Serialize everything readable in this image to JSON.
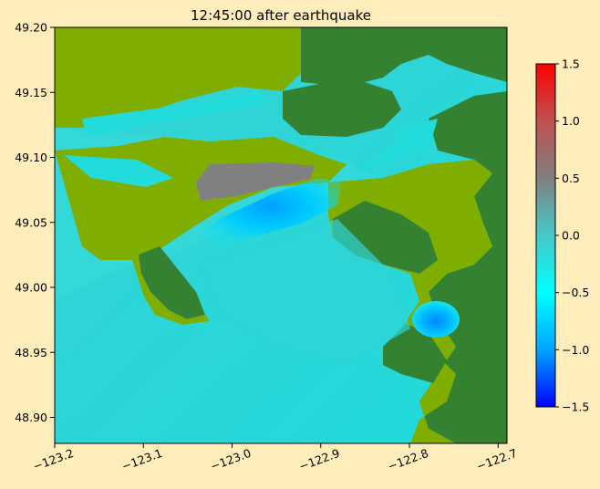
{
  "figure": {
    "background": "#FFEEBB"
  },
  "chart_data": {
    "type": "heatmap",
    "title": "12:45:00 after earthquake",
    "xlabel": "",
    "ylabel": "",
    "xlim": [
      -123.2,
      -122.69
    ],
    "ylim": [
      48.88,
      49.2
    ],
    "xticks": [
      {
        "value": -123.2,
        "label": "−123.2"
      },
      {
        "value": -123.1,
        "label": "−123.1"
      },
      {
        "value": -123.0,
        "label": "−123.0"
      },
      {
        "value": -122.9,
        "label": "−122.9"
      },
      {
        "value": -122.8,
        "label": "−122.8"
      },
      {
        "value": -122.7,
        "label": "−122.7"
      }
    ],
    "yticks": [
      {
        "value": 49.2,
        "label": "49.20"
      },
      {
        "value": 49.15,
        "label": "49.15"
      },
      {
        "value": 49.1,
        "label": "49.10"
      },
      {
        "value": 49.05,
        "label": "49.05"
      },
      {
        "value": 49.0,
        "label": "49.00"
      },
      {
        "value": 48.95,
        "label": "48.95"
      },
      {
        "value": 48.9,
        "label": "48.90"
      }
    ],
    "colorbar": {
      "range": [
        -1.5,
        1.5
      ],
      "ticks": [
        {
          "value": 1.5,
          "label": "1.5"
        },
        {
          "value": 1.0,
          "label": "1.0"
        },
        {
          "value": 0.5,
          "label": "0.5"
        },
        {
          "value": 0.0,
          "label": "0.0"
        },
        {
          "value": -0.5,
          "label": "−0.5"
        },
        {
          "value": -1.0,
          "label": "−1.0"
        },
        {
          "value": -1.5,
          "label": "−1.5"
        }
      ],
      "colormap": [
        "#0000FF",
        "#00A5FF",
        "#00FFFF",
        "#46C8C8",
        "#808080",
        "#C05050",
        "#FF0000"
      ]
    },
    "colors": {
      "land_high": "#348132",
      "land_low": "#7FAE00",
      "water": "#22DCDC",
      "flooded": "#808080",
      "trough": "#00AAFF"
    },
    "grid": false
  }
}
